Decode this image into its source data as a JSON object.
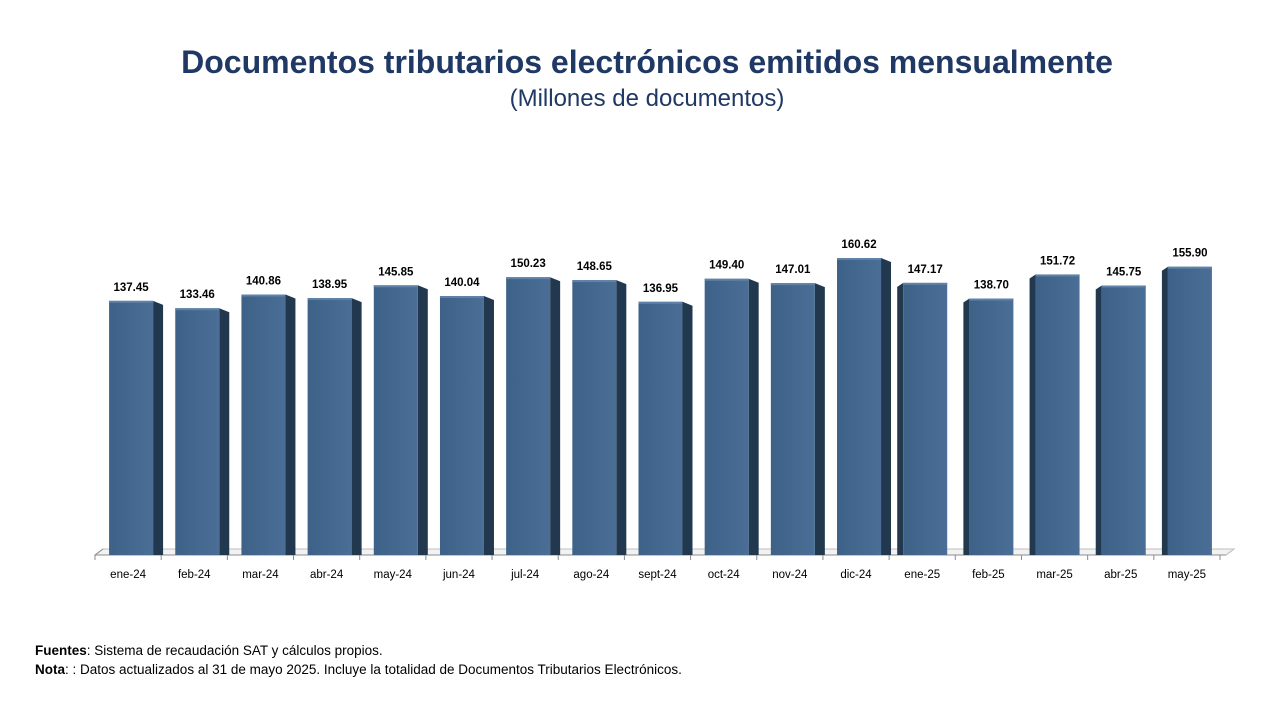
{
  "title": "Documentos tributarios electrónicos emitidos mensualmente",
  "subtitle": "(Millones de documentos)",
  "colors": {
    "title": "#1f3864",
    "bar_front": "#3d6187",
    "bar_side": "#22384f",
    "bar_top": "#5f82a8"
  },
  "chart_data": {
    "type": "bar",
    "title": "Documentos tributarios electrónicos emitidos mensualmente",
    "subtitle": "(Millones de documentos)",
    "categories": [
      "ene-24",
      "feb-24",
      "mar-24",
      "abr-24",
      "may-24",
      "jun-24",
      "jul-24",
      "ago-24",
      "sept-24",
      "oct-24",
      "nov-24",
      "dic-24",
      "ene-25",
      "feb-25",
      "mar-25",
      "abr-25",
      "may-25"
    ],
    "values": [
      137.45,
      133.46,
      140.86,
      138.95,
      145.85,
      140.04,
      150.23,
      148.65,
      136.95,
      149.4,
      147.01,
      160.62,
      147.17,
      138.7,
      151.72,
      145.75,
      155.9
    ],
    "value_labels": [
      "137.45",
      "133.46",
      "140.86",
      "138.95",
      "145.85",
      "140.04",
      "150.23",
      "148.65",
      "136.95",
      "149.40",
      "147.01",
      "160.62",
      "147.17",
      "138.70",
      "151.72",
      "145.75",
      "155.90"
    ],
    "xlabel": "",
    "ylabel": "",
    "ylim": [
      0,
      160.62
    ],
    "grid": false,
    "legend": "none",
    "style": "3d-columns"
  },
  "footer": {
    "sources_label": "Fuentes",
    "sources_text": ": Sistema de recaudación SAT y cálculos propios.",
    "note_label": "Nota",
    "note_text": ": : Datos actualizados al 31 de mayo 2025. Incluye la totalidad de Documentos Tributarios Electrónicos."
  }
}
